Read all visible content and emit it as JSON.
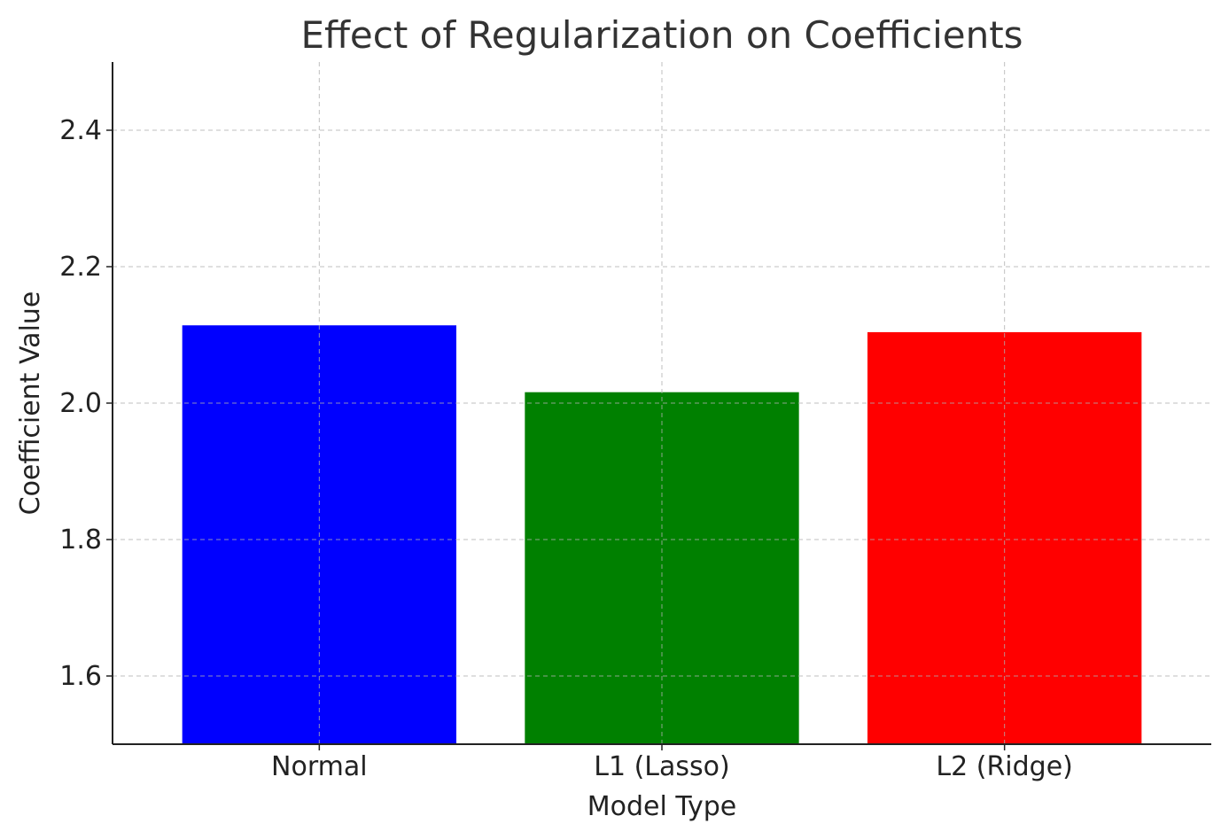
{
  "chart_data": {
    "type": "bar",
    "title": "Effect of Regularization on Coefficients",
    "xlabel": "Model Type",
    "ylabel": "Coefficient Value",
    "categories": [
      "Normal",
      "L1 (Lasso)",
      "L2 (Ridge)"
    ],
    "values": [
      2.114,
      2.016,
      2.104
    ],
    "colors": [
      "#0000ff",
      "#008000",
      "#ff0000"
    ],
    "ylim": [
      1.5,
      2.5
    ],
    "yticks": [
      "1.6",
      "1.8",
      "2.0",
      "2.2",
      "2.4"
    ],
    "grid": true
  }
}
